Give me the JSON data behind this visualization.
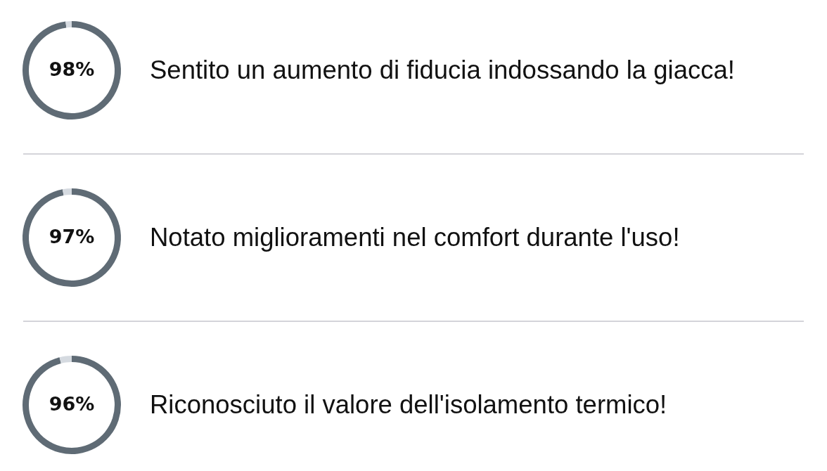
{
  "chart_data": [
    {
      "type": "donut",
      "title": "Sentito un aumento di fiducia indossando la giacca!",
      "categories": [
        null,
        null
      ],
      "values": [
        98,
        2
      ],
      "colors": [
        "#5f6b75",
        "#d5dae0"
      ],
      "value_labels": [
        "98%",
        null
      ]
    },
    {
      "type": "donut",
      "title": "Notato miglioramenti nel comfort durante l'uso!",
      "categories": [
        null,
        null
      ],
      "values": [
        97,
        3
      ],
      "colors": [
        "#5f6b75",
        "#d5dae0"
      ],
      "value_labels": [
        "97%",
        null
      ]
    },
    {
      "type": "donut",
      "title": "Riconosciuto il valore dell'isolamento termico!",
      "categories": [
        null,
        null
      ],
      "values": [
        96,
        4
      ],
      "colors": [
        "#5f6b75",
        "#d5dae0"
      ],
      "value_labels": [
        "96%",
        null
      ]
    }
  ]
}
